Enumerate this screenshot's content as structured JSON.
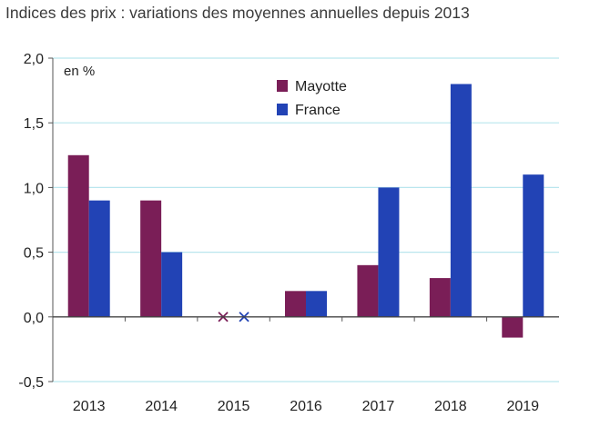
{
  "chart_data": {
    "type": "bar",
    "title": "Indices des prix : variations des moyennes annuelles depuis 2013",
    "unit_label": "en %",
    "categories": [
      "2013",
      "2014",
      "2015",
      "2016",
      "2017",
      "2018",
      "2019"
    ],
    "series": [
      {
        "name": "Mayotte",
        "color": "#7a1e57",
        "values": [
          1.25,
          0.9,
          null,
          0.2,
          0.4,
          0.3,
          -0.16
        ]
      },
      {
        "name": "France",
        "color": "#2243b5",
        "values": [
          0.9,
          0.5,
          null,
          0.2,
          1.0,
          1.8,
          1.1
        ]
      }
    ],
    "missing_marker": "x",
    "ylim": [
      -0.5,
      2.0
    ],
    "yticks": [
      2.0,
      1.5,
      1.0,
      0.5,
      0.0,
      -0.5
    ],
    "ytick_labels": [
      "2,0",
      "1,5",
      "1,0",
      "0,5",
      "0,0",
      "-0,5"
    ],
    "grid": true,
    "grid_color": "#b9e6ee",
    "legend_position": "top-center"
  }
}
